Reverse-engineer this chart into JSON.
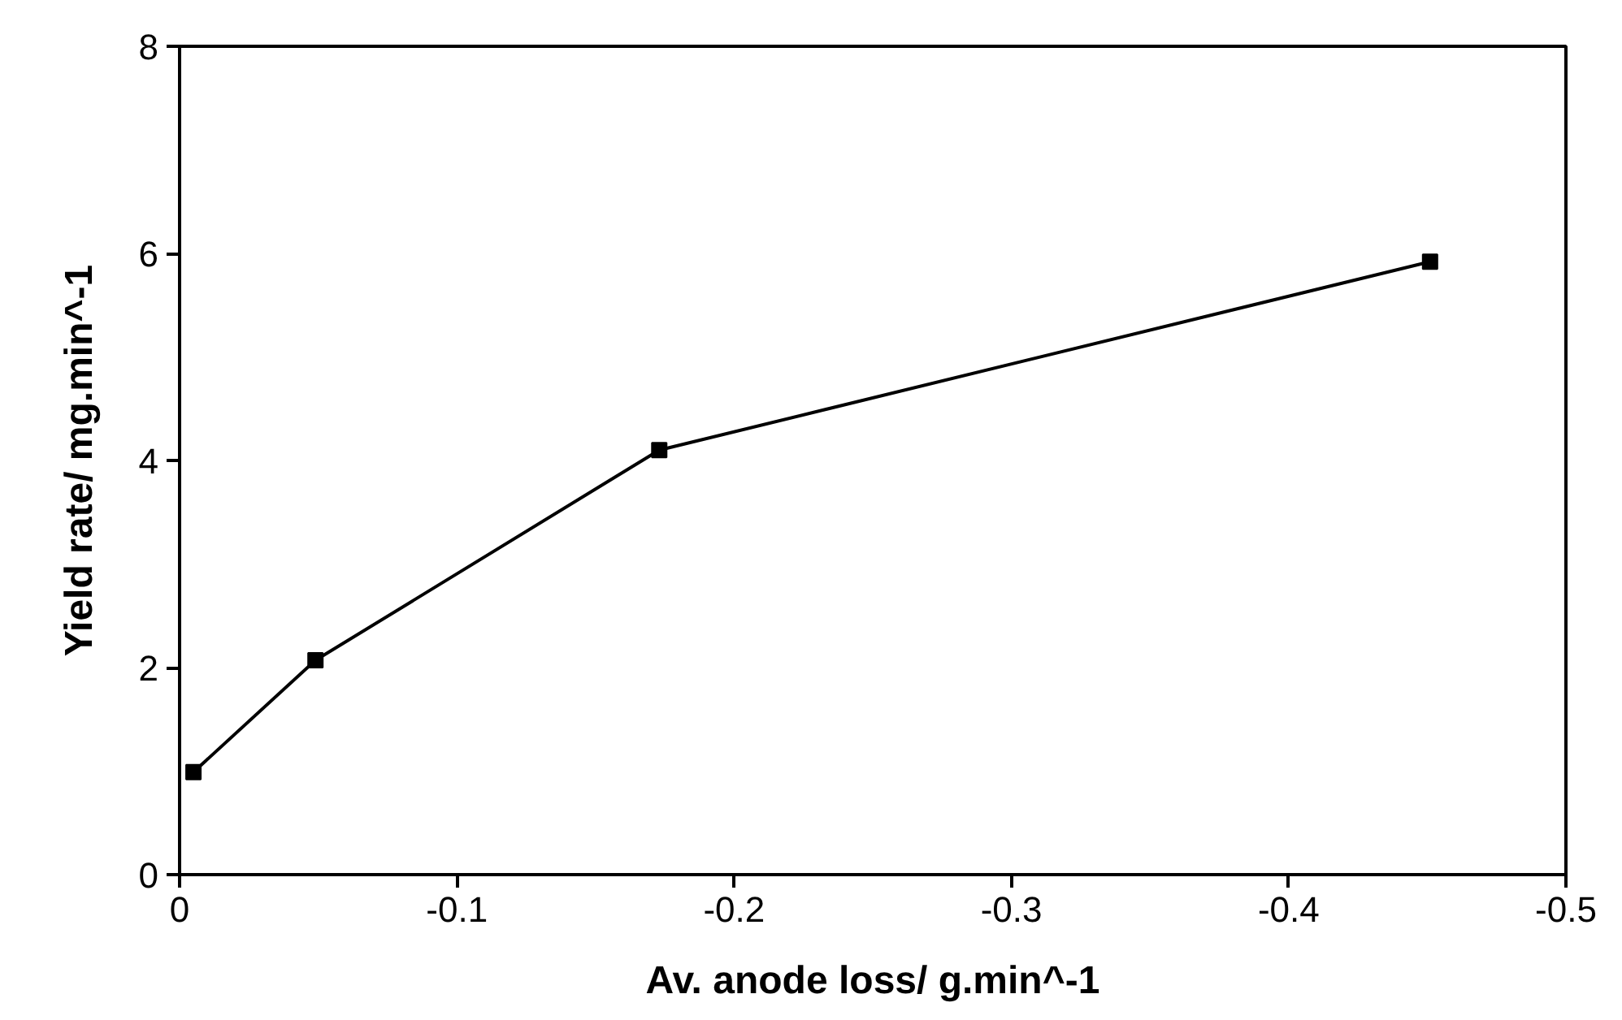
{
  "chart_data": {
    "type": "line",
    "xlabel": "Av. anode loss/ g.min^-1",
    "ylabel": "Yield rate/ mg.min^-1",
    "x": [
      -0.005,
      -0.049,
      -0.173,
      -0.451
    ],
    "series": [
      {
        "color": "#000000",
        "values": [
          0.99,
          2.07,
          4.1,
          5.92
        ]
      }
    ],
    "xlim": [
      0,
      -0.5
    ],
    "xticks": [
      0,
      -0.1,
      -0.2,
      -0.3,
      -0.4,
      -0.5
    ],
    "ylim": [
      0,
      8
    ],
    "yticks": [
      0,
      2,
      4,
      6,
      8
    ],
    "grid": false,
    "marker": "square",
    "line_style": "solid"
  }
}
